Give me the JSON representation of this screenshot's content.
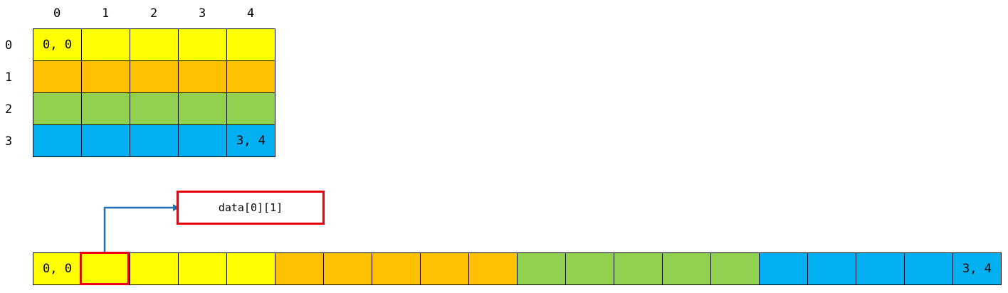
{
  "colors": {
    "row0": "#ffff00",
    "row1": "#ffc000",
    "row2": "#92d050",
    "row3": "#00b0f0",
    "highlight": "#e8000b",
    "arrow": "#1f6fb2"
  },
  "grid": {
    "col_labels": [
      "0",
      "1",
      "2",
      "3",
      "4"
    ],
    "row_labels": [
      "0",
      "1",
      "2",
      "3"
    ],
    "first_cell_text": "0, 0",
    "last_cell_text": "3, 4"
  },
  "strip": {
    "first_cell_text": "0, 0",
    "last_cell_text": "3, 4",
    "highlighted_index": 1
  },
  "pointer": {
    "label": "data[0][1]"
  }
}
